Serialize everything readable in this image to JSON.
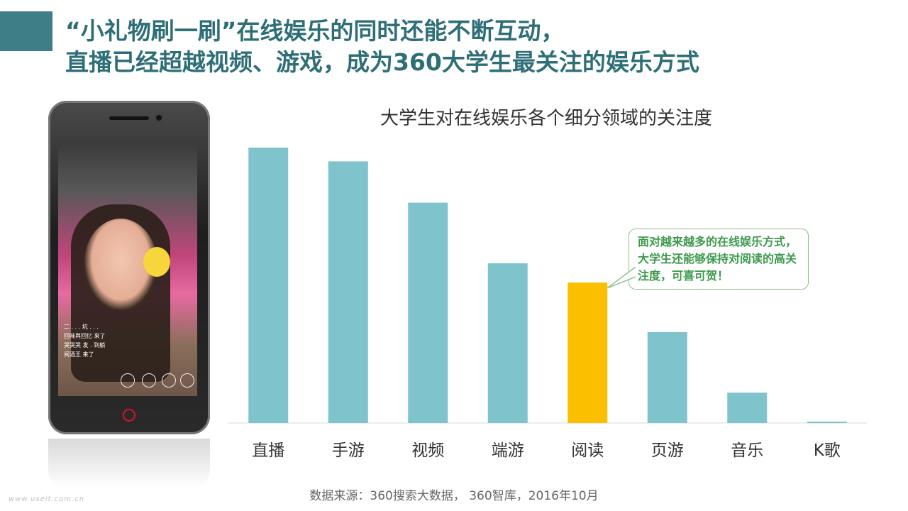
{
  "header": {
    "title_line1": "“小礼物刷一刷”在线娱乐的同时还能不断互动，",
    "title_line2": "直播已经超越视频、游戏，成为360大学生最关注的娱乐方式"
  },
  "chart_data": {
    "type": "bar",
    "title": "大学生对在线娱乐各个细分领域的关注度",
    "categories": [
      "直播",
      "手游",
      "视频",
      "端游",
      "阅读",
      "页游",
      "音乐",
      "K歌"
    ],
    "values": [
      100,
      95,
      80,
      58,
      51,
      33,
      11,
      0.5
    ],
    "highlight_index": 4,
    "ylim": [
      0,
      100
    ],
    "grid": false,
    "colors": {
      "bar": "#7fc3cc",
      "highlight": "#fcbf00",
      "axis": "#d9d9d9"
    }
  },
  "callout": {
    "text": "面对越来越多的在线娱乐方式，大学生还能够保持对阅读的高关注度，可喜可贺！"
  },
  "source": "数据来源：360搜索大数据， 360智库，2016年10月",
  "watermark": "www.useit.com.cn",
  "phone_screen": {
    "chat_lines": [
      "二 . . . 坑 . . .",
      "回味舆回忆 来了",
      "哭哭哭 发 . 到躺",
      "阅酒王 来了"
    ]
  }
}
